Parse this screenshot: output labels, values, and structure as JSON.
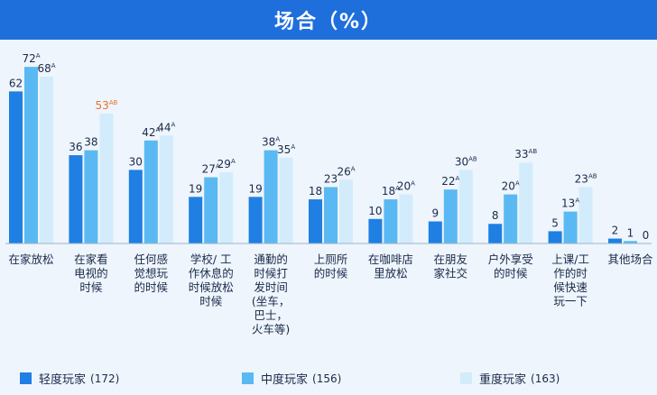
{
  "chart_data": {
    "type": "bar",
    "title": "场合（%）",
    "categories": [
      "在家放松",
      "在家看电视的时候",
      "任何感觉想玩的时候",
      "学校/工作休息的时候放松时候",
      "通勤的时候打发时间(坐车，巴士，火车等)",
      "上厕所的时候",
      "在咖啡店里放松",
      "在朋友家社交",
      "户外享受的时候",
      "上课/工作的时候快速玩一下",
      "其他场合"
    ],
    "category_lines": [
      [
        "在家放松"
      ],
      [
        "在家看",
        "电视的",
        "时候"
      ],
      [
        "任何感",
        "觉想玩",
        "的时候"
      ],
      [
        "学校/ 工",
        "作休息的",
        "时候放松",
        "时候"
      ],
      [
        "通勤的",
        "时候打",
        "发时间",
        "(坐车，",
        "巴士，",
        "火车等)"
      ],
      [
        "上厕所",
        "的时候"
      ],
      [
        "在咖啡店",
        "里放松"
      ],
      [
        "在朋友",
        "家社交"
      ],
      [
        "户外享受",
        "的时候"
      ],
      [
        "上课/工",
        "作的时",
        "候快速",
        "玩一下"
      ],
      [
        "其他场合"
      ]
    ],
    "series": [
      {
        "name": "轻度玩家",
        "count": "(172)",
        "color": "#1f7fe3",
        "values": [
          62,
          36,
          30,
          19,
          19,
          18,
          10,
          9,
          8,
          5,
          2
        ],
        "sig": [
          "",
          "",
          "",
          "",
          "",
          "",
          "",
          "",
          "",
          "",
          ""
        ]
      },
      {
        "name": "中度玩家",
        "count": "(156)",
        "color": "#5ab9f2",
        "values": [
          72,
          38,
          42,
          27,
          38,
          23,
          18,
          22,
          20,
          13,
          1
        ],
        "sig": [
          "A",
          "",
          "A",
          "A",
          "A",
          "",
          "A",
          "A",
          "A",
          "A",
          ""
        ]
      },
      {
        "name": "重度玩家",
        "count": "(163)",
        "color": "#d3ecfb",
        "values": [
          68,
          53,
          44,
          29,
          35,
          26,
          20,
          30,
          33,
          23,
          0
        ],
        "sig": [
          "A",
          "AB",
          "A",
          "A",
          "A",
          "A",
          "A",
          "AB",
          "AB",
          "AB",
          ""
        ]
      }
    ],
    "highlight": {
      "category_index": 1,
      "series_index": 2,
      "color": "#e8712a"
    },
    "ylim": [
      0,
      80
    ],
    "grid": false,
    "legend_position": "bottom"
  }
}
